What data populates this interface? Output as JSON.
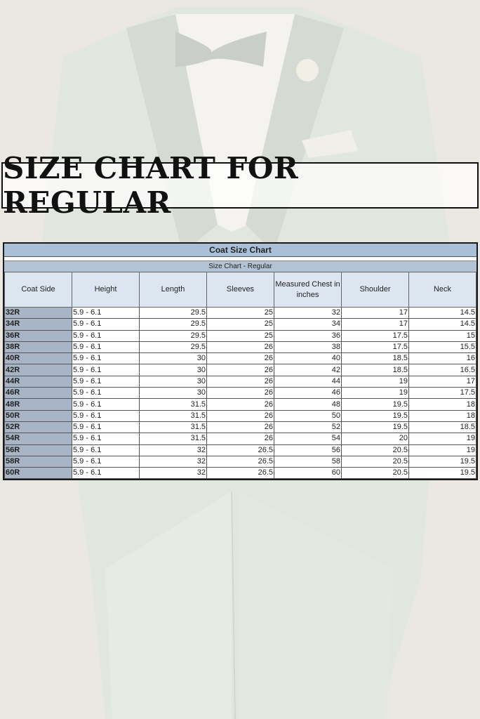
{
  "banner": {
    "title": "SIZE CHART FOR REGULAR"
  },
  "table": {
    "title": "Coat Size Chart",
    "subtitle": "Size Chart - Regular",
    "headers": [
      "Coat Side",
      "Height",
      "Length",
      "Sleeves",
      "Measured Chest in inches",
      "Shoulder",
      "Neck"
    ],
    "rows": [
      [
        "32R",
        "5.9 - 6.1",
        "29.5",
        "25",
        "32",
        "17",
        "14.5"
      ],
      [
        "34R",
        "5.9 - 6.1",
        "29.5",
        "25",
        "34",
        "17",
        "14.5"
      ],
      [
        "36R",
        "5.9 - 6.1",
        "29.5",
        "25",
        "36",
        "17.5",
        "15"
      ],
      [
        "38R",
        "5.9 - 6.1",
        "29.5",
        "26",
        "38",
        "17.5",
        "15.5"
      ],
      [
        "40R",
        "5.9 - 6.1",
        "30",
        "26",
        "40",
        "18.5",
        "16"
      ],
      [
        "42R",
        "5.9 - 6.1",
        "30",
        "26",
        "42",
        "18.5",
        "16.5"
      ],
      [
        "44R",
        "5.9 - 6.1",
        "30",
        "26",
        "44",
        "19",
        "17"
      ],
      [
        "46R",
        "5.9 - 6.1",
        "30",
        "26",
        "46",
        "19",
        "17.5"
      ],
      [
        "48R",
        "5.9 - 6.1",
        "31.5",
        "26",
        "48",
        "19.5",
        "18"
      ],
      [
        "50R",
        "5.9 - 6.1",
        "31.5",
        "26",
        "50",
        "19.5",
        "18"
      ],
      [
        "52R",
        "5.9 - 6.1",
        "31.5",
        "26",
        "52",
        "19.5",
        "18.5"
      ],
      [
        "54R",
        "5.9 - 6.1",
        "31.5",
        "26",
        "54",
        "20",
        "19"
      ],
      [
        "56R",
        "5.9 - 6.1",
        "32",
        "26.5",
        "56",
        "20.5",
        "19"
      ],
      [
        "58R",
        "5.9 - 6.1",
        "32",
        "26.5",
        "58",
        "20.5",
        "19.5"
      ],
      [
        "60R",
        "5.9 - 6.1",
        "32",
        "26.5",
        "60",
        "20.5",
        "19.5"
      ]
    ]
  },
  "colors": {
    "header_blue": "#a9c0d8",
    "column_header": "#dce6f1",
    "size_column": "#a7b5c6",
    "suit": "#dfe6dc"
  }
}
